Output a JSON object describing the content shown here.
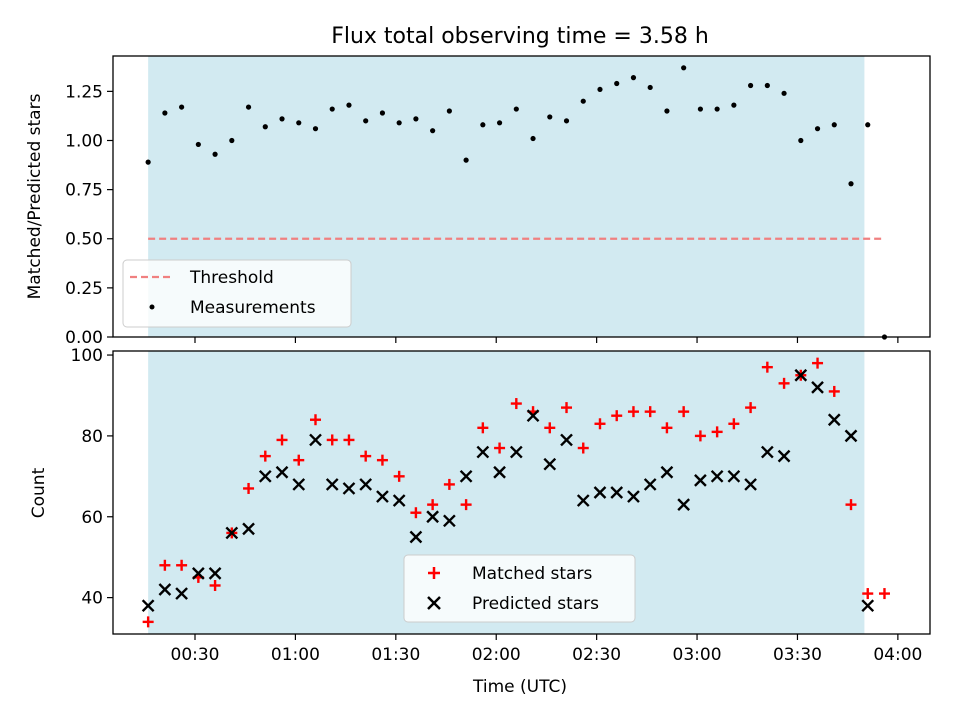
{
  "title": "Flux total observing time = 3.58 h",
  "xlabel": "Time (UTC)",
  "x_ticks": [
    "00:30",
    "01:00",
    "01:30",
    "02:00",
    "02:30",
    "03:00",
    "03:30",
    "04:00"
  ],
  "chart_data": [
    {
      "type": "scatter",
      "ylabel": "Matched/Predicted stars",
      "ylim": [
        0,
        1.43
      ],
      "y_ticks": [
        "0.00",
        "0.25",
        "0.50",
        "0.75",
        "1.00",
        "1.25"
      ],
      "shaded_span": [
        "00:16",
        "03:50"
      ],
      "shade_color": "#add8e6",
      "legend_position": "lower-left",
      "series": [
        {
          "name": "Threshold",
          "kind": "dashed-line",
          "color": "#f08080",
          "x": [
            "00:16",
            "03:56"
          ],
          "y": [
            0.5,
            0.5
          ]
        },
        {
          "name": "Measurements",
          "kind": "dots",
          "color": "#000000",
          "x": [
            "00:16",
            "00:21",
            "00:26",
            "00:31",
            "00:36",
            "00:41",
            "00:46",
            "00:51",
            "00:56",
            "01:01",
            "01:06",
            "01:11",
            "01:16",
            "01:21",
            "01:26",
            "01:31",
            "01:36",
            "01:41",
            "01:46",
            "01:51",
            "01:56",
            "02:01",
            "02:06",
            "02:11",
            "02:16",
            "02:21",
            "02:26",
            "02:31",
            "02:36",
            "02:41",
            "02:46",
            "02:51",
            "02:56",
            "03:01",
            "03:06",
            "03:11",
            "03:16",
            "03:21",
            "03:26",
            "03:31",
            "03:36",
            "03:41",
            "03:46",
            "03:51",
            "03:56"
          ],
          "y": [
            0.89,
            1.14,
            1.17,
            0.98,
            0.93,
            1.0,
            1.17,
            1.07,
            1.11,
            1.09,
            1.06,
            1.16,
            1.18,
            1.1,
            1.14,
            1.09,
            1.11,
            1.05,
            1.15,
            0.9,
            1.08,
            1.09,
            1.16,
            1.01,
            1.12,
            1.1,
            1.2,
            1.26,
            1.29,
            1.32,
            1.27,
            1.15,
            1.37,
            1.16,
            1.16,
            1.18,
            1.28,
            1.28,
            1.24,
            1.0,
            1.06,
            1.08,
            0.78,
            1.08,
            0.0
          ]
        }
      ]
    },
    {
      "type": "scatter",
      "ylabel": "Count",
      "ylim": [
        31,
        101
      ],
      "y_ticks": [
        "40",
        "60",
        "80",
        "100"
      ],
      "shaded_span": [
        "00:16",
        "03:50"
      ],
      "shade_color": "#add8e6",
      "legend_position": "lower-center",
      "series": [
        {
          "name": "Matched stars",
          "kind": "plus",
          "color": "#ff0000",
          "x": [
            "00:16",
            "00:21",
            "00:26",
            "00:31",
            "00:36",
            "00:41",
            "00:46",
            "00:51",
            "00:56",
            "01:01",
            "01:06",
            "01:11",
            "01:16",
            "01:21",
            "01:26",
            "01:31",
            "01:36",
            "01:41",
            "01:46",
            "01:51",
            "01:56",
            "02:01",
            "02:06",
            "02:11",
            "02:16",
            "02:21",
            "02:26",
            "02:31",
            "02:36",
            "02:41",
            "02:46",
            "02:51",
            "02:56",
            "03:01",
            "03:06",
            "03:11",
            "03:16",
            "03:21",
            "03:26",
            "03:31",
            "03:36",
            "03:41",
            "03:46",
            "03:51",
            "03:56"
          ],
          "y": [
            34,
            48,
            48,
            45,
            43,
            56,
            67,
            75,
            79,
            74,
            84,
            79,
            79,
            75,
            74,
            70,
            61,
            63,
            68,
            63,
            82,
            77,
            88,
            86,
            82,
            87,
            77,
            83,
            85,
            86,
            86,
            82,
            86,
            80,
            81,
            83,
            87,
            97,
            93,
            95,
            98,
            91,
            63,
            41,
            41
          ]
        },
        {
          "name": "Predicted stars",
          "kind": "x",
          "color": "#000000",
          "x": [
            "00:16",
            "00:21",
            "00:26",
            "00:31",
            "00:36",
            "00:41",
            "00:46",
            "00:51",
            "00:56",
            "01:01",
            "01:06",
            "01:11",
            "01:16",
            "01:21",
            "01:26",
            "01:31",
            "01:36",
            "01:41",
            "01:46",
            "01:51",
            "01:56",
            "02:01",
            "02:06",
            "02:11",
            "02:16",
            "02:21",
            "02:26",
            "02:31",
            "02:36",
            "02:41",
            "02:46",
            "02:51",
            "02:56",
            "03:01",
            "03:06",
            "03:11",
            "03:16",
            "03:21",
            "03:26",
            "03:31",
            "03:36",
            "03:41",
            "03:46",
            "03:51"
          ],
          "y": [
            38,
            42,
            41,
            46,
            46,
            56,
            57,
            70,
            71,
            68,
            79,
            68,
            67,
            68,
            65,
            64,
            55,
            60,
            59,
            70,
            76,
            71,
            76,
            85,
            73,
            79,
            64,
            66,
            66,
            65,
            68,
            71,
            63,
            69,
            70,
            70,
            68,
            76,
            75,
            95,
            92,
            84,
            80,
            38
          ]
        }
      ]
    }
  ]
}
